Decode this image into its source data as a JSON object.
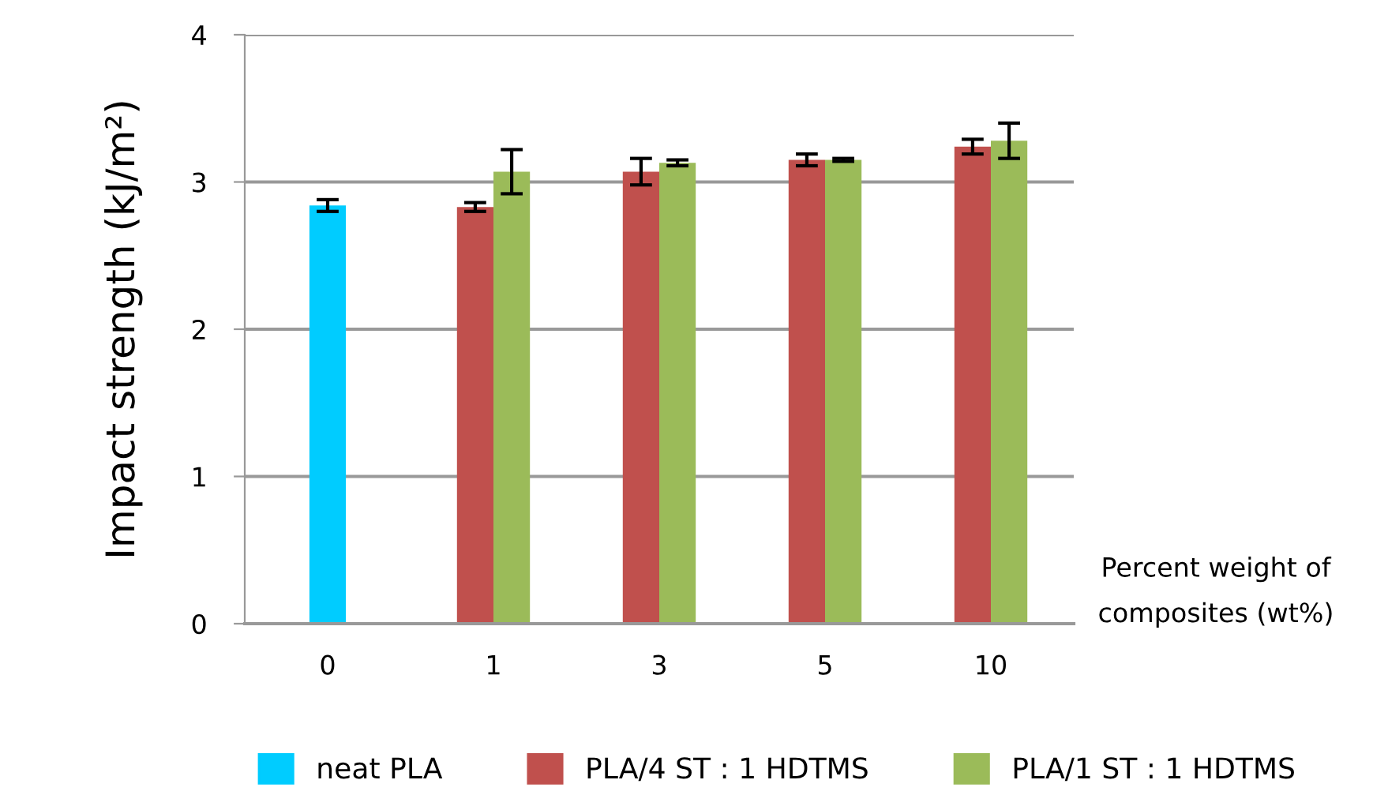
{
  "chart_data": {
    "type": "bar",
    "ylabel": "Impact strength (kJ/m²)",
    "xlabel": "Percent weight of composites (wt%)",
    "categories": [
      "0",
      "1",
      "3",
      "5",
      "10"
    ],
    "series": [
      {
        "name": "neat PLA",
        "color": "#00ccff",
        "values": [
          2.84,
          null,
          null,
          null,
          null
        ],
        "errors": [
          0.04,
          null,
          null,
          null,
          null
        ]
      },
      {
        "name": "PLA/4 ST : 1 HDTMS",
        "color": "#c0504d",
        "values": [
          null,
          2.83,
          3.07,
          3.15,
          3.24
        ],
        "errors": [
          null,
          0.03,
          0.09,
          0.04,
          0.05
        ]
      },
      {
        "name": "PLA/1 ST : 1 HDTMS",
        "color": "#9bbb59",
        "values": [
          null,
          3.07,
          3.13,
          3.15,
          3.28
        ],
        "errors": [
          null,
          0.15,
          0.02,
          0.01,
          0.12
        ]
      }
    ],
    "ylim": [
      0,
      4
    ],
    "yticks": [
      0,
      1,
      2,
      3,
      4
    ],
    "grid": "y",
    "legend": "bottom"
  }
}
